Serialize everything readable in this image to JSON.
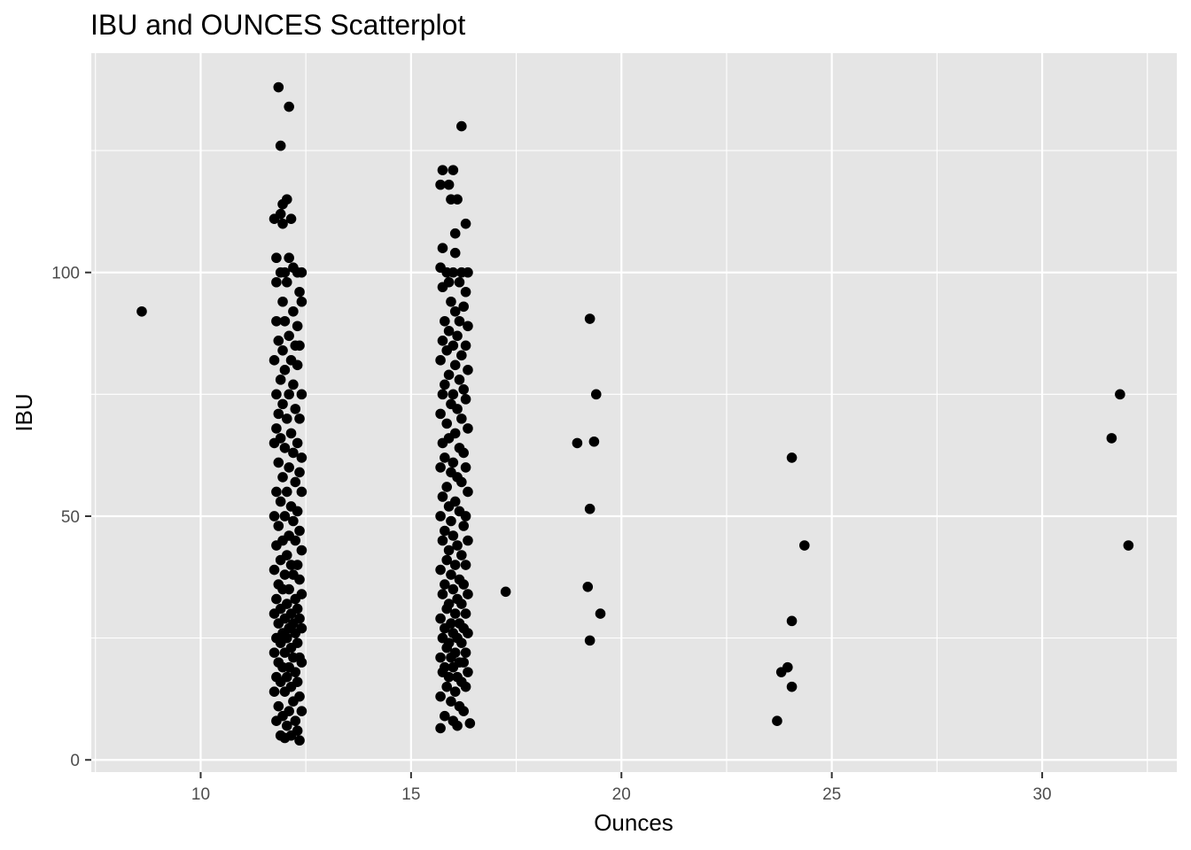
{
  "chart_data": {
    "type": "scatter",
    "title": "IBU and OUNCES Scatterplot",
    "xlabel": "Ounces",
    "ylabel": "IBU",
    "xlim": [
      7.4,
      33.2
    ],
    "ylim": [
      -2.5,
      145
    ],
    "xticks": [
      10,
      15,
      20,
      25,
      30
    ],
    "yticks": [
      0,
      50,
      100
    ],
    "grid": true,
    "legend": "none",
    "colors": {
      "panel": "#e5e5e5",
      "grid": "#ffffff",
      "point": "#000000",
      "tick": "#333333"
    },
    "points": [
      [
        8.6,
        92
      ],
      [
        11.85,
        138
      ],
      [
        12.1,
        134
      ],
      [
        11.9,
        126
      ],
      [
        12.05,
        115
      ],
      [
        11.95,
        114
      ],
      [
        11.9,
        112
      ],
      [
        12.15,
        111
      ],
      [
        11.75,
        111
      ],
      [
        11.95,
        110
      ],
      [
        11.8,
        103
      ],
      [
        12.1,
        103
      ],
      [
        12.2,
        101
      ],
      [
        11.9,
        100
      ],
      [
        12.0,
        100
      ],
      [
        12.3,
        100
      ],
      [
        12.4,
        100
      ],
      [
        11.8,
        98
      ],
      [
        12.05,
        98
      ],
      [
        12.35,
        96
      ],
      [
        12.4,
        94
      ],
      [
        11.95,
        94
      ],
      [
        12.2,
        92
      ],
      [
        11.8,
        90
      ],
      [
        12.0,
        90
      ],
      [
        12.3,
        89
      ],
      [
        12.1,
        87
      ],
      [
        11.85,
        86
      ],
      [
        12.25,
        85
      ],
      [
        12.35,
        85
      ],
      [
        11.95,
        84
      ],
      [
        12.15,
        82
      ],
      [
        11.75,
        82
      ],
      [
        12.3,
        81
      ],
      [
        12.0,
        80
      ],
      [
        11.9,
        78
      ],
      [
        12.2,
        77
      ],
      [
        11.8,
        75
      ],
      [
        12.1,
        75
      ],
      [
        12.4,
        75
      ],
      [
        11.95,
        73
      ],
      [
        12.25,
        72
      ],
      [
        11.85,
        71
      ],
      [
        12.05,
        70
      ],
      [
        12.35,
        70
      ],
      [
        11.8,
        68
      ],
      [
        12.15,
        67
      ],
      [
        11.9,
        66
      ],
      [
        12.3,
        65
      ],
      [
        11.75,
        65
      ],
      [
        12.0,
        64
      ],
      [
        12.2,
        63
      ],
      [
        12.4,
        62
      ],
      [
        11.85,
        61
      ],
      [
        12.1,
        60
      ],
      [
        12.35,
        59
      ],
      [
        11.95,
        58
      ],
      [
        12.25,
        57
      ],
      [
        11.8,
        55
      ],
      [
        12.05,
        55
      ],
      [
        12.4,
        55
      ],
      [
        11.9,
        53
      ],
      [
        12.15,
        52
      ],
      [
        12.3,
        51
      ],
      [
        11.75,
        50
      ],
      [
        12.0,
        50
      ],
      [
        12.2,
        49
      ],
      [
        11.85,
        48
      ],
      [
        12.35,
        47
      ],
      [
        12.1,
        46
      ],
      [
        11.95,
        45
      ],
      [
        12.25,
        45
      ],
      [
        11.8,
        44
      ],
      [
        12.4,
        43
      ],
      [
        12.05,
        42
      ],
      [
        11.9,
        41
      ],
      [
        12.3,
        40
      ],
      [
        12.15,
        40
      ],
      [
        11.75,
        39
      ],
      [
        12.0,
        38
      ],
      [
        12.2,
        38
      ],
      [
        12.35,
        37
      ],
      [
        11.85,
        36
      ],
      [
        12.1,
        35
      ],
      [
        11.95,
        35
      ],
      [
        12.4,
        34
      ],
      [
        12.25,
        33
      ],
      [
        11.8,
        33
      ],
      [
        12.05,
        32
      ],
      [
        12.3,
        31
      ],
      [
        11.9,
        31
      ],
      [
        12.15,
        30
      ],
      [
        11.75,
        30
      ],
      [
        12.0,
        29
      ],
      [
        12.35,
        29
      ],
      [
        12.2,
        28
      ],
      [
        11.85,
        28
      ],
      [
        12.4,
        27
      ],
      [
        12.1,
        27
      ],
      [
        11.95,
        26
      ],
      [
        12.25,
        26
      ],
      [
        11.8,
        25
      ],
      [
        12.05,
        25
      ],
      [
        12.3,
        24
      ],
      [
        11.9,
        24
      ],
      [
        12.15,
        23
      ],
      [
        12.0,
        22
      ],
      [
        11.75,
        22
      ],
      [
        12.35,
        21
      ],
      [
        12.2,
        21
      ],
      [
        11.85,
        20
      ],
      [
        12.4,
        20
      ],
      [
        12.1,
        19
      ],
      [
        11.95,
        19
      ],
      [
        12.25,
        18
      ],
      [
        11.8,
        17
      ],
      [
        12.05,
        17
      ],
      [
        12.3,
        16
      ],
      [
        11.9,
        16
      ],
      [
        12.15,
        15
      ],
      [
        12.0,
        14
      ],
      [
        11.75,
        14
      ],
      [
        12.35,
        13
      ],
      [
        12.2,
        12
      ],
      [
        11.85,
        11
      ],
      [
        12.4,
        10
      ],
      [
        12.1,
        10
      ],
      [
        11.95,
        9
      ],
      [
        12.25,
        8
      ],
      [
        11.8,
        8
      ],
      [
        12.05,
        7
      ],
      [
        12.3,
        6
      ],
      [
        11.9,
        5
      ],
      [
        12.15,
        5
      ],
      [
        12.0,
        4.5
      ],
      [
        12.35,
        4
      ],
      [
        16.2,
        130
      ],
      [
        15.75,
        121
      ],
      [
        16.0,
        121
      ],
      [
        15.7,
        118
      ],
      [
        15.9,
        118
      ],
      [
        16.1,
        115
      ],
      [
        15.95,
        115
      ],
      [
        16.3,
        110
      ],
      [
        16.05,
        108
      ],
      [
        15.75,
        105
      ],
      [
        16.05,
        104
      ],
      [
        15.7,
        101
      ],
      [
        15.85,
        100
      ],
      [
        16.0,
        100
      ],
      [
        16.2,
        100
      ],
      [
        16.35,
        100
      ],
      [
        15.9,
        98
      ],
      [
        16.15,
        98
      ],
      [
        15.75,
        97
      ],
      [
        16.3,
        96
      ],
      [
        15.95,
        94
      ],
      [
        16.25,
        93
      ],
      [
        16.05,
        92
      ],
      [
        15.8,
        90
      ],
      [
        16.15,
        90
      ],
      [
        16.35,
        89
      ],
      [
        15.9,
        88
      ],
      [
        16.1,
        87
      ],
      [
        15.75,
        86
      ],
      [
        16.3,
        85
      ],
      [
        16.0,
        85
      ],
      [
        15.85,
        84
      ],
      [
        16.2,
        83
      ],
      [
        15.7,
        82
      ],
      [
        16.05,
        81
      ],
      [
        16.35,
        80
      ],
      [
        15.9,
        79
      ],
      [
        16.15,
        78
      ],
      [
        15.8,
        77
      ],
      [
        16.25,
        76
      ],
      [
        16.0,
        75
      ],
      [
        15.75,
        75
      ],
      [
        16.3,
        74
      ],
      [
        15.95,
        73
      ],
      [
        16.1,
        72
      ],
      [
        15.7,
        71
      ],
      [
        16.2,
        70
      ],
      [
        15.85,
        69
      ],
      [
        16.35,
        68
      ],
      [
        16.05,
        67
      ],
      [
        15.9,
        66
      ],
      [
        15.75,
        65
      ],
      [
        16.15,
        64
      ],
      [
        16.25,
        63
      ],
      [
        15.8,
        62
      ],
      [
        16.0,
        61
      ],
      [
        16.3,
        60
      ],
      [
        15.7,
        60
      ],
      [
        15.95,
        59
      ],
      [
        16.1,
        58
      ],
      [
        16.2,
        57
      ],
      [
        15.85,
        56
      ],
      [
        16.35,
        55
      ],
      [
        15.75,
        54
      ],
      [
        16.05,
        53
      ],
      [
        15.9,
        52
      ],
      [
        16.15,
        51
      ],
      [
        16.3,
        50
      ],
      [
        15.7,
        50
      ],
      [
        15.95,
        49
      ],
      [
        16.25,
        48
      ],
      [
        15.8,
        47
      ],
      [
        16.0,
        46
      ],
      [
        16.35,
        45
      ],
      [
        15.75,
        45
      ],
      [
        16.1,
        44
      ],
      [
        15.9,
        43
      ],
      [
        16.2,
        42
      ],
      [
        15.85,
        41
      ],
      [
        16.3,
        40
      ],
      [
        16.05,
        40
      ],
      [
        15.7,
        39
      ],
      [
        15.95,
        38
      ],
      [
        16.15,
        37
      ],
      [
        16.25,
        36
      ],
      [
        15.8,
        36
      ],
      [
        16.0,
        35
      ],
      [
        16.35,
        34
      ],
      [
        15.75,
        34
      ],
      [
        16.1,
        33
      ],
      [
        15.9,
        32
      ],
      [
        16.2,
        32
      ],
      [
        15.85,
        31
      ],
      [
        16.3,
        30
      ],
      [
        16.05,
        30
      ],
      [
        15.7,
        29
      ],
      [
        15.95,
        28
      ],
      [
        16.15,
        28
      ],
      [
        16.25,
        27
      ],
      [
        15.8,
        27
      ],
      [
        16.0,
        26
      ],
      [
        16.35,
        26
      ],
      [
        15.75,
        25
      ],
      [
        16.1,
        25
      ],
      [
        15.9,
        24
      ],
      [
        16.2,
        24
      ],
      [
        15.85,
        23
      ],
      [
        16.3,
        22
      ],
      [
        16.05,
        22
      ],
      [
        15.7,
        21
      ],
      [
        15.95,
        21
      ],
      [
        16.15,
        20
      ],
      [
        16.25,
        20
      ],
      [
        15.8,
        19
      ],
      [
        16.0,
        19
      ],
      [
        16.35,
        18
      ],
      [
        15.75,
        18
      ],
      [
        16.1,
        17
      ],
      [
        15.9,
        17
      ],
      [
        16.2,
        16
      ],
      [
        15.85,
        15
      ],
      [
        16.3,
        15
      ],
      [
        16.05,
        14
      ],
      [
        15.7,
        13
      ],
      [
        15.95,
        12
      ],
      [
        16.15,
        11
      ],
      [
        16.25,
        10
      ],
      [
        15.8,
        9
      ],
      [
        16.0,
        8
      ],
      [
        16.4,
        7.5
      ],
      [
        16.1,
        7
      ],
      [
        15.7,
        6.5
      ],
      [
        17.25,
        34.5
      ],
      [
        19.25,
        90.5
      ],
      [
        19.4,
        75
      ],
      [
        18.95,
        65
      ],
      [
        19.35,
        65.3
      ],
      [
        19.25,
        51.5
      ],
      [
        19.2,
        35.5
      ],
      [
        19.5,
        30
      ],
      [
        19.25,
        24.5
      ],
      [
        24.05,
        62
      ],
      [
        24.35,
        44
      ],
      [
        24.05,
        28.5
      ],
      [
        23.95,
        19
      ],
      [
        23.8,
        18
      ],
      [
        24.05,
        15
      ],
      [
        23.7,
        8
      ],
      [
        31.85,
        75
      ],
      [
        31.65,
        66
      ],
      [
        32.05,
        44
      ]
    ]
  }
}
